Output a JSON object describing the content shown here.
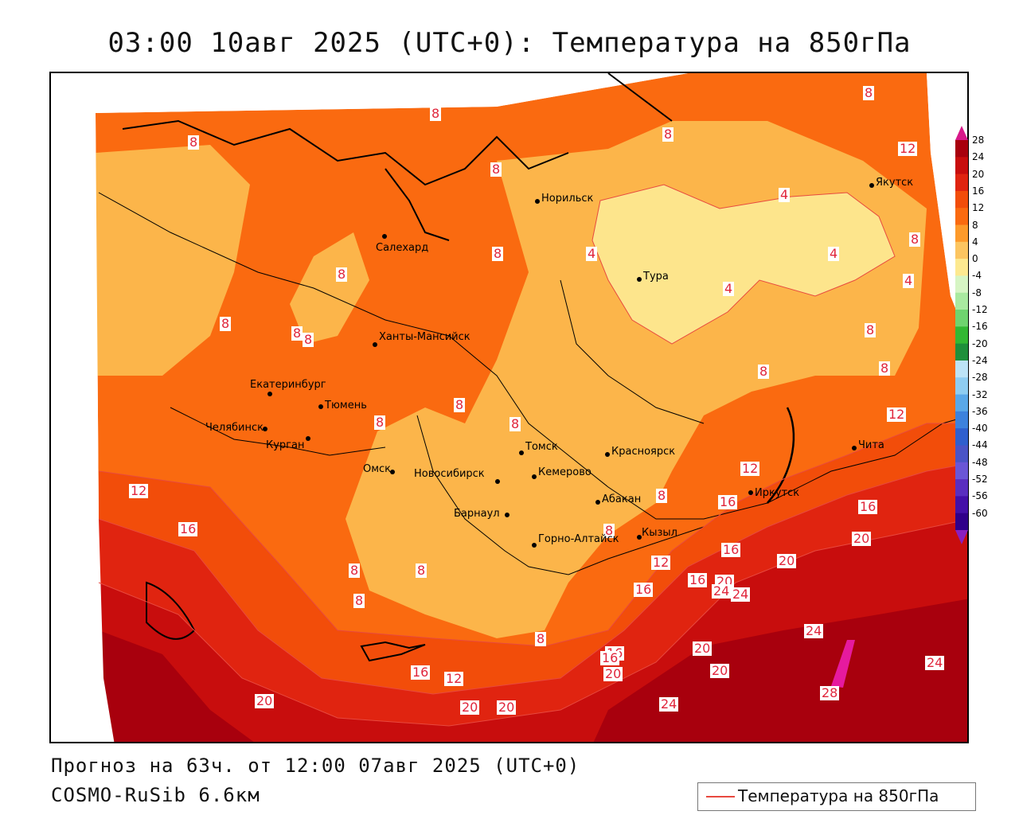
{
  "header": {
    "title": "03:00 10авг 2025 (UTC+0): Температура на 850гПа"
  },
  "footer": {
    "forecast": "Прогноз на 63ч. от 12:00 07авг 2025 (UTC+0)",
    "model": "COSMO-RuSib 6.6км"
  },
  "legend": {
    "line_label": "Температура на 850гПа",
    "line_color": "#e8493f"
  },
  "colorbar": {
    "labels": [
      "28",
      "24",
      "20",
      "16",
      "12",
      "8",
      "4",
      "0",
      "-4",
      "-8",
      "-12",
      "-16",
      "-20",
      "-24",
      "-28",
      "-32",
      "-36",
      "-40",
      "-44",
      "-48",
      "-52",
      "-56",
      "-60"
    ],
    "colors": [
      "#a8000d",
      "#c80d0d",
      "#e02410",
      "#f24d0a",
      "#fa6a10",
      "#fd9a2a",
      "#fcc560",
      "#fde990",
      "#d6f5c4",
      "#a9e9a0",
      "#6fd46f",
      "#33b833",
      "#1e8f3a",
      "#bde3f6",
      "#8fcdf1",
      "#5aa8e8",
      "#3d82dd",
      "#2f5fce",
      "#4a54c6",
      "#6a56d6",
      "#5a2ec0",
      "#4410a8",
      "#30008a"
    ]
  },
  "cities": [
    {
      "name": "Норильск"
    },
    {
      "name": "Якутск"
    },
    {
      "name": "Салехард"
    },
    {
      "name": "Тура"
    },
    {
      "name": "Ханты-Мансийск"
    },
    {
      "name": "Екатеринбург"
    },
    {
      "name": "Тюмень"
    },
    {
      "name": "Челябинск"
    },
    {
      "name": "Курган"
    },
    {
      "name": "Омск"
    },
    {
      "name": "Новосибирск"
    },
    {
      "name": "Томск"
    },
    {
      "name": "Кемерово"
    },
    {
      "name": "Красноярск"
    },
    {
      "name": "Барнаул"
    },
    {
      "name": "Абакан"
    },
    {
      "name": "Горно-Алтайск"
    },
    {
      "name": "Кызыл"
    },
    {
      "name": "Иркутск"
    },
    {
      "name": "Чита"
    }
  ],
  "contour_labels": [
    "8",
    "8",
    "8",
    "8",
    "12",
    "8",
    "4",
    "4",
    "4",
    "4",
    "4",
    "8",
    "8",
    "8",
    "8",
    "8",
    "8",
    "8",
    "8",
    "8",
    "8",
    "8",
    "8",
    "12",
    "12",
    "12",
    "16",
    "16",
    "16",
    "16",
    "20",
    "20",
    "20",
    "16",
    "24",
    "24",
    "24",
    "20",
    "16",
    "20",
    "20",
    "24",
    "28",
    "24",
    "20",
    "20",
    "20",
    "16",
    "12",
    "16",
    "8",
    "8",
    "8",
    "8",
    "8",
    "8",
    "12",
    "16"
  ]
}
